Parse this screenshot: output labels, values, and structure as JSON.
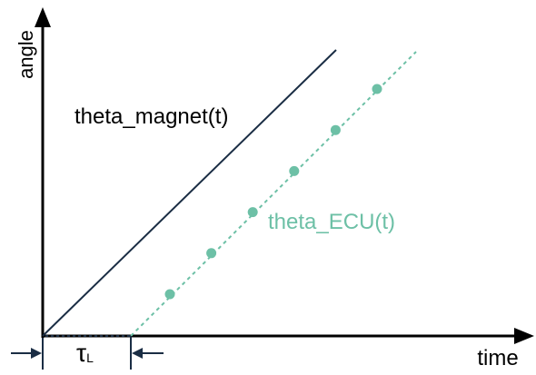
{
  "axes": {
    "y_label": "angle",
    "x_label": "time"
  },
  "curves": {
    "magnet": {
      "label": "theta_magnet(t)",
      "color": "#1a2d44"
    },
    "ecu": {
      "label": "theta_ECU(t)",
      "color": "#6dc0a6",
      "sample_count": 6
    }
  },
  "delay": {
    "symbol": "τ",
    "subscript": "L",
    "color": "#1a2d44"
  }
}
